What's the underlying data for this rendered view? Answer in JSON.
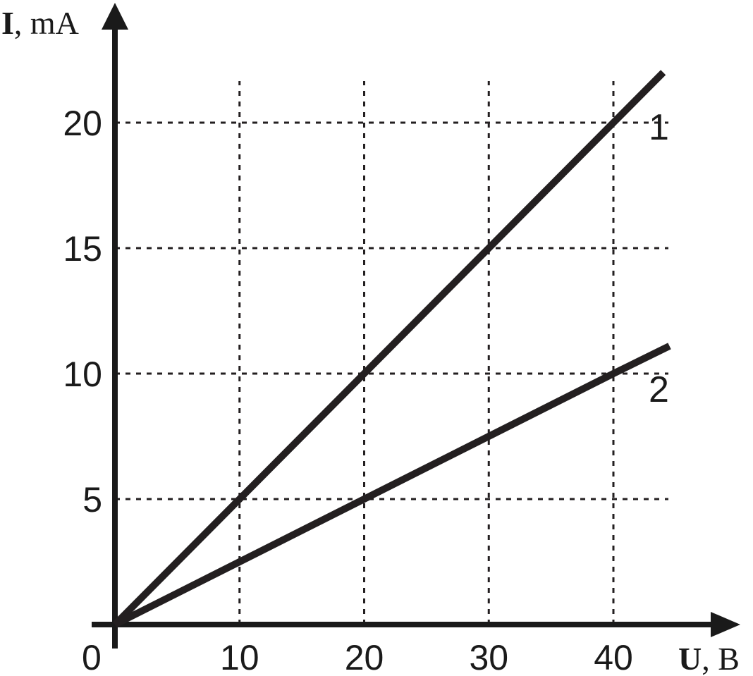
{
  "chart_data": {
    "type": "line",
    "x_axis": {
      "symbol": "U",
      "unit": ", В",
      "ticks": [
        10,
        20,
        30,
        40
      ],
      "range": [
        0,
        45
      ],
      "origin_label": "0"
    },
    "y_axis": {
      "symbol": "I",
      "unit": ", mA",
      "ticks": [
        5,
        10,
        15,
        20
      ],
      "range": [
        0,
        22
      ]
    },
    "grid": true,
    "grid_style": "dotted",
    "series": [
      {
        "name": "1",
        "x": [
          0,
          10,
          20,
          30,
          40,
          44
        ],
        "y": [
          0,
          5,
          10,
          15,
          20,
          22
        ]
      },
      {
        "name": "2",
        "x": [
          0,
          10,
          20,
          30,
          40,
          44.5
        ],
        "y": [
          0,
          2.5,
          5,
          7.5,
          10,
          11.1
        ]
      }
    ],
    "colors": {
      "axis": "#1a1a1a",
      "series": "#231f20",
      "grid": "#231f20"
    }
  }
}
